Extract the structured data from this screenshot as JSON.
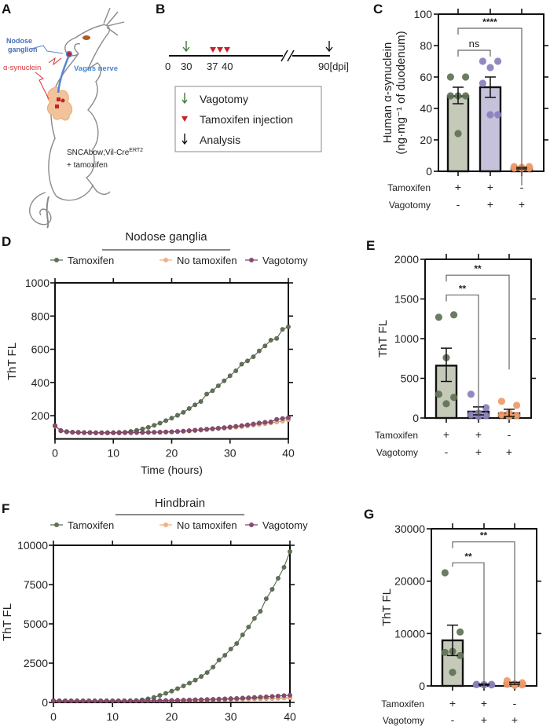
{
  "panels": {
    "A": {
      "label": "A",
      "nodose_line1": "Nodose",
      "nodose_line2": "ganglion",
      "synuclein": "α-synuclein",
      "vagus": "Vagus nerve",
      "genotype": "SNCAbow;Vil-Cre",
      "genotype_sup": "ERT2",
      "treatment": "+ tamoxifen"
    },
    "B": {
      "label": "B",
      "timeline_ticks": [
        "0",
        "30",
        "37",
        "40",
        "90[dpi]"
      ],
      "legend": [
        {
          "icon": "green-down-arrow",
          "label": "Vagotomy",
          "color": "#3f7a3a"
        },
        {
          "icon": "red-triangle",
          "label": "Tamoxifen injection",
          "color": "#c8202a"
        },
        {
          "icon": "black-down-arrow",
          "label": "Analysis",
          "color": "#111111"
        }
      ]
    }
  },
  "colors": {
    "tamoxifen": "#5f7155",
    "no_tamoxifen": "#f0b084",
    "vagotomy": "#8a4a70",
    "bar_green": "#c4c9b8",
    "bar_purple": "#c6c2dc",
    "bar_orange": "#f4b58a",
    "pt_green": "#5f7155",
    "pt_purple": "#8a7fbc",
    "pt_orange": "#ef9a66"
  },
  "chart_data": [
    {
      "panel": "C",
      "type": "bar",
      "ylabel_line1": "Human α-synuclein",
      "ylabel_line2": "(ng·mg⁻¹ of duodenum)",
      "ylim": [
        0,
        100
      ],
      "yticks": [
        0,
        20,
        40,
        60,
        80,
        100
      ],
      "row_labels": [
        "Tamoxifen",
        "Vagotomy"
      ],
      "groups": [
        {
          "tamoxifen": "+",
          "vagotomy": "-",
          "mean": 47.8,
          "err": [
            43,
            53.5
          ],
          "points": [
            60,
            60,
            48,
            48,
            48,
            24
          ]
        },
        {
          "tamoxifen": "+",
          "vagotomy": "+",
          "mean": 53.5,
          "err": [
            47,
            60
          ],
          "points": [
            70,
            70,
            66,
            56,
            36,
            36
          ]
        },
        {
          "tamoxifen": "-",
          "vagotomy": "+",
          "mean": 2,
          "err": [
            1.5,
            2.5
          ],
          "points": [
            3,
            3,
            2.5,
            2,
            2,
            2
          ]
        }
      ],
      "comparisons": [
        {
          "from": 0,
          "to": 1,
          "label": "ns"
        },
        {
          "from": 0,
          "to": 2,
          "label": "****"
        }
      ]
    },
    {
      "panel": "D",
      "type": "line",
      "title": "Nodose ganglia",
      "xlabel": "Time (hours)",
      "ylabel": "ThT FL",
      "xlim": [
        0,
        40
      ],
      "ylim": [
        60,
        1000
      ],
      "xticks": [
        0,
        10,
        20,
        30,
        40
      ],
      "yticks": [
        200,
        400,
        600,
        800,
        1000
      ],
      "legend": "top",
      "x": [
        0,
        1,
        2,
        3,
        4,
        5,
        6,
        7,
        8,
        9,
        10,
        11,
        12,
        13,
        14,
        15,
        16,
        17,
        18,
        19,
        20,
        21,
        22,
        23,
        24,
        25,
        26,
        27,
        28,
        29,
        30,
        31,
        32,
        33,
        34,
        35,
        36,
        37,
        38,
        39,
        40
      ],
      "series": [
        {
          "name": "Tamoxifen",
          "values": [
            140,
            110,
            104,
            100,
            100,
            98,
            98,
            97,
            97,
            98,
            98,
            99,
            100,
            105,
            112,
            120,
            130,
            142,
            155,
            170,
            185,
            202,
            220,
            243,
            265,
            285,
            330,
            350,
            380,
            410,
            440,
            470,
            510,
            530,
            555,
            590,
            620,
            655,
            665,
            720,
            735
          ]
        },
        {
          "name": "No tamoxifen",
          "values": [
            135,
            108,
            102,
            100,
            98,
            97,
            97,
            96,
            96,
            96,
            96,
            96,
            97,
            97,
            98,
            98,
            99,
            100,
            100,
            101,
            102,
            104,
            106,
            108,
            110,
            113,
            116,
            119,
            122,
            125,
            128,
            131,
            135,
            139,
            143,
            148,
            152,
            157,
            162,
            168,
            175
          ]
        },
        {
          "name": "Vagotomy",
          "values": [
            140,
            110,
            103,
            100,
            99,
            98,
            98,
            97,
            97,
            97,
            97,
            97,
            98,
            98,
            99,
            99,
            100,
            100,
            101,
            102,
            103,
            105,
            107,
            110,
            113,
            116,
            119,
            122,
            125,
            128,
            132,
            136,
            140,
            145,
            150,
            156,
            160,
            163,
            178,
            183,
            188
          ]
        }
      ]
    },
    {
      "panel": "E",
      "type": "bar",
      "ylabel_line1": "ThT FL",
      "ylim": [
        0,
        2000
      ],
      "yticks": [
        0,
        500,
        1000,
        1500,
        2000
      ],
      "row_labels": [
        "Tamoxifen",
        "Vagotomy"
      ],
      "groups": [
        {
          "tamoxifen": "+",
          "vagotomy": "-",
          "mean": 660,
          "err": [
            460,
            880
          ],
          "points": [
            1270,
            1300,
            760,
            300,
            260,
            180
          ]
        },
        {
          "tamoxifen": "+",
          "vagotomy": "+",
          "mean": 80,
          "err": [
            40,
            140
          ],
          "points": [
            300,
            130,
            60,
            40,
            30,
            20
          ]
        },
        {
          "tamoxifen": "-",
          "vagotomy": "+",
          "mean": 60,
          "err": [
            20,
            110
          ],
          "points": [
            210,
            160,
            60,
            40,
            30,
            20
          ]
        }
      ],
      "comparisons": [
        {
          "from": 0,
          "to": 1,
          "label": "**"
        },
        {
          "from": 0,
          "to": 2,
          "label": "**"
        }
      ]
    },
    {
      "panel": "F",
      "type": "line",
      "title": "Hindbrain",
      "ylabel": "ThT FL",
      "xlim": [
        0,
        40
      ],
      "ylim": [
        0,
        10000
      ],
      "xticks": [
        0,
        10,
        20,
        30,
        40
      ],
      "yticks": [
        0,
        2500,
        5000,
        7500,
        10000
      ],
      "legend": "top",
      "x": [
        0,
        1,
        2,
        3,
        4,
        5,
        6,
        7,
        8,
        9,
        10,
        11,
        12,
        13,
        14,
        15,
        16,
        17,
        18,
        19,
        20,
        21,
        22,
        23,
        24,
        25,
        26,
        27,
        28,
        29,
        30,
        31,
        32,
        33,
        34,
        35,
        36,
        37,
        38,
        39,
        40
      ],
      "series": [
        {
          "name": "Tamoxifen",
          "values": [
            110,
            100,
            100,
            100,
            100,
            100,
            100,
            100,
            100,
            100,
            100,
            100,
            105,
            110,
            120,
            160,
            230,
            320,
            450,
            580,
            720,
            880,
            1050,
            1230,
            1420,
            1650,
            1900,
            2250,
            2700,
            3000,
            3400,
            3750,
            4300,
            4800,
            5350,
            5800,
            6600,
            7200,
            7900,
            8600,
            9600
          ]
        },
        {
          "name": "No tamoxifen",
          "values": [
            100,
            100,
            100,
            100,
            100,
            100,
            100,
            100,
            100,
            100,
            100,
            100,
            100,
            100,
            100,
            100,
            105,
            110,
            115,
            120,
            125,
            130,
            135,
            140,
            145,
            150,
            155,
            160,
            170,
            180,
            190,
            200,
            210,
            220,
            230,
            240,
            250,
            260,
            270,
            285,
            300
          ]
        },
        {
          "name": "Vagotomy",
          "values": [
            110,
            100,
            100,
            100,
            100,
            100,
            100,
            100,
            100,
            100,
            100,
            100,
            100,
            100,
            100,
            105,
            110,
            115,
            120,
            125,
            130,
            140,
            150,
            160,
            170,
            180,
            190,
            200,
            215,
            230,
            245,
            260,
            280,
            300,
            320,
            340,
            360,
            385,
            410,
            435,
            460
          ]
        }
      ]
    },
    {
      "panel": "G",
      "type": "bar",
      "ylabel_line1": "ThT FL",
      "ylim": [
        0,
        30000
      ],
      "yticks": [
        0,
        10000,
        20000,
        30000
      ],
      "row_labels": [
        "Tamoxifen",
        "Vagotomy"
      ],
      "groups": [
        {
          "tamoxifen": "+",
          "vagotomy": "-",
          "mean": 8700,
          "err": [
            5800,
            11600
          ],
          "points": [
            21600,
            10300,
            6600,
            6400,
            5800,
            2600
          ]
        },
        {
          "tamoxifen": "+",
          "vagotomy": "+",
          "mean": 250,
          "err": [
            150,
            350
          ],
          "points": [
            300,
            300,
            250,
            250,
            200,
            200
          ]
        },
        {
          "tamoxifen": "-",
          "vagotomy": "+",
          "mean": 500,
          "err": [
            300,
            700
          ],
          "points": [
            1000,
            600,
            400,
            300,
            200,
            100
          ]
        }
      ],
      "comparisons": [
        {
          "from": 0,
          "to": 1,
          "label": "**"
        },
        {
          "from": 0,
          "to": 2,
          "label": "**"
        }
      ]
    }
  ]
}
